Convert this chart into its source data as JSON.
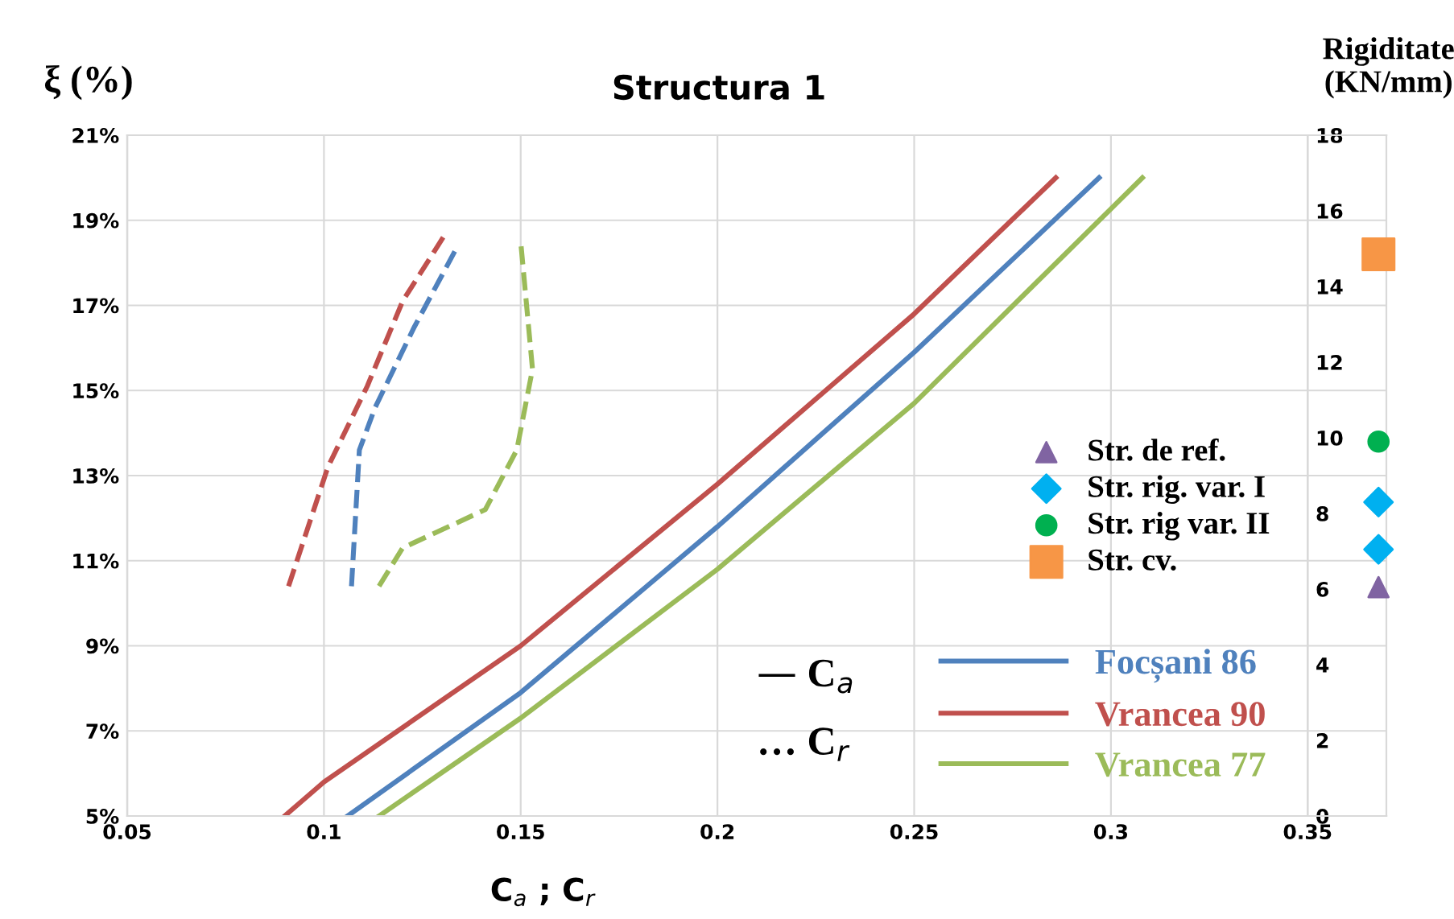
{
  "chart_data": {
    "type": "line",
    "title": "Structura 1",
    "xlabel": "C$_{a}$ ; C$_{r}$",
    "ylabel": "ξ (%)",
    "y2label": "Rigiditate\n(KN/mm)",
    "xlim": [
      0.05,
      0.37
    ],
    "xticks": [
      0.05,
      0.1,
      0.15,
      0.2,
      0.25,
      0.3,
      0.35
    ],
    "ylim": [
      5,
      21
    ],
    "yticks": [
      {
        "value": 5,
        "label": "5%"
      },
      {
        "value": 7,
        "label": "7%"
      },
      {
        "value": 9,
        "label": "9%"
      },
      {
        "value": 11,
        "label": "11%"
      },
      {
        "value": 13,
        "label": "13%"
      },
      {
        "value": 15,
        "label": "15%"
      },
      {
        "value": 17,
        "label": "17%"
      },
      {
        "value": 19,
        "label": "19%"
      },
      {
        "value": 21,
        "label": "21%"
      }
    ],
    "y2lim": [
      0,
      18
    ],
    "y2ticks": [
      0,
      2,
      4,
      6,
      8,
      10,
      12,
      14,
      16,
      18
    ],
    "grid": true,
    "legend": "bottom right",
    "marker": "none",
    "annotations": [
      "— C$_{a}$",
      "… C$_{r}$"
    ],
    "series": [
      {
        "name": "Focșani 86",
        "color": "#4f81bd",
        "line_style": "solid",
        "x": [
          0.106,
          0.15,
          0.2,
          0.25,
          0.297
        ],
        "values": [
          5,
          7.9,
          11.8,
          15.9,
          20
        ]
      },
      {
        "name": "Vrancea 90",
        "color": "#c0504d",
        "line_style": "solid",
        "x": [
          0.09,
          0.1,
          0.15,
          0.2,
          0.25,
          0.286
        ],
        "values": [
          5,
          5.8,
          9.0,
          12.8,
          16.8,
          20
        ]
      },
      {
        "name": "Vrancea 77",
        "color": "#9bbb59",
        "line_style": "solid",
        "x": [
          0.114,
          0.15,
          0.2,
          0.25,
          0.308
        ],
        "values": [
          5,
          7.3,
          10.8,
          14.7,
          20
        ]
      },
      {
        "color": "#4f81bd",
        "line_style": "dashed",
        "x": [
          0.107,
          0.109,
          0.113,
          0.123,
          0.134
        ],
        "values": [
          10.4,
          13.6,
          14.6,
          16.5,
          18.4
        ]
      },
      {
        "color": "#c0504d",
        "line_style": "dashed",
        "x": [
          0.091,
          0.101,
          0.111,
          0.12,
          0.131
        ],
        "values": [
          10.4,
          13.2,
          15.1,
          17.1,
          18.7
        ]
      },
      {
        "color": "#9bbb59",
        "line_style": "dashed",
        "x": [
          0.114,
          0.12,
          0.141,
          0.149,
          0.153,
          0.15
        ],
        "values": [
          10.4,
          11.3,
          12.2,
          13.6,
          15.5,
          18.5
        ]
      },
      {
        "type": "scatter",
        "axis": "y2",
        "name": "Str. de ref.",
        "color": "#8064a2",
        "marker": "triangle",
        "x": [
          0.368
        ],
        "values": [
          6.05
        ]
      },
      {
        "type": "scatter",
        "axis": "y2",
        "name": "Str. rig. var. I",
        "color": "#00b0f0",
        "marker": "diamond",
        "x": [
          0.368
        ],
        "values": [
          8.3
        ]
      },
      {
        "type": "scatter",
        "axis": "y2",
        "color": "#00b0f0",
        "marker": "diamond",
        "x": [
          0.368
        ],
        "values": [
          7.05
        ]
      },
      {
        "type": "scatter",
        "axis": "y2",
        "name": "Str. rig var. II",
        "color": "#00b050",
        "marker": "circle",
        "x": [
          0.368
        ],
        "values": [
          9.9
        ]
      },
      {
        "type": "scatter",
        "axis": "y2",
        "name": "Str. cv.",
        "color": "#f79646",
        "marker": "square",
        "x": [
          0.368
        ],
        "values": [
          14.85
        ]
      }
    ]
  }
}
